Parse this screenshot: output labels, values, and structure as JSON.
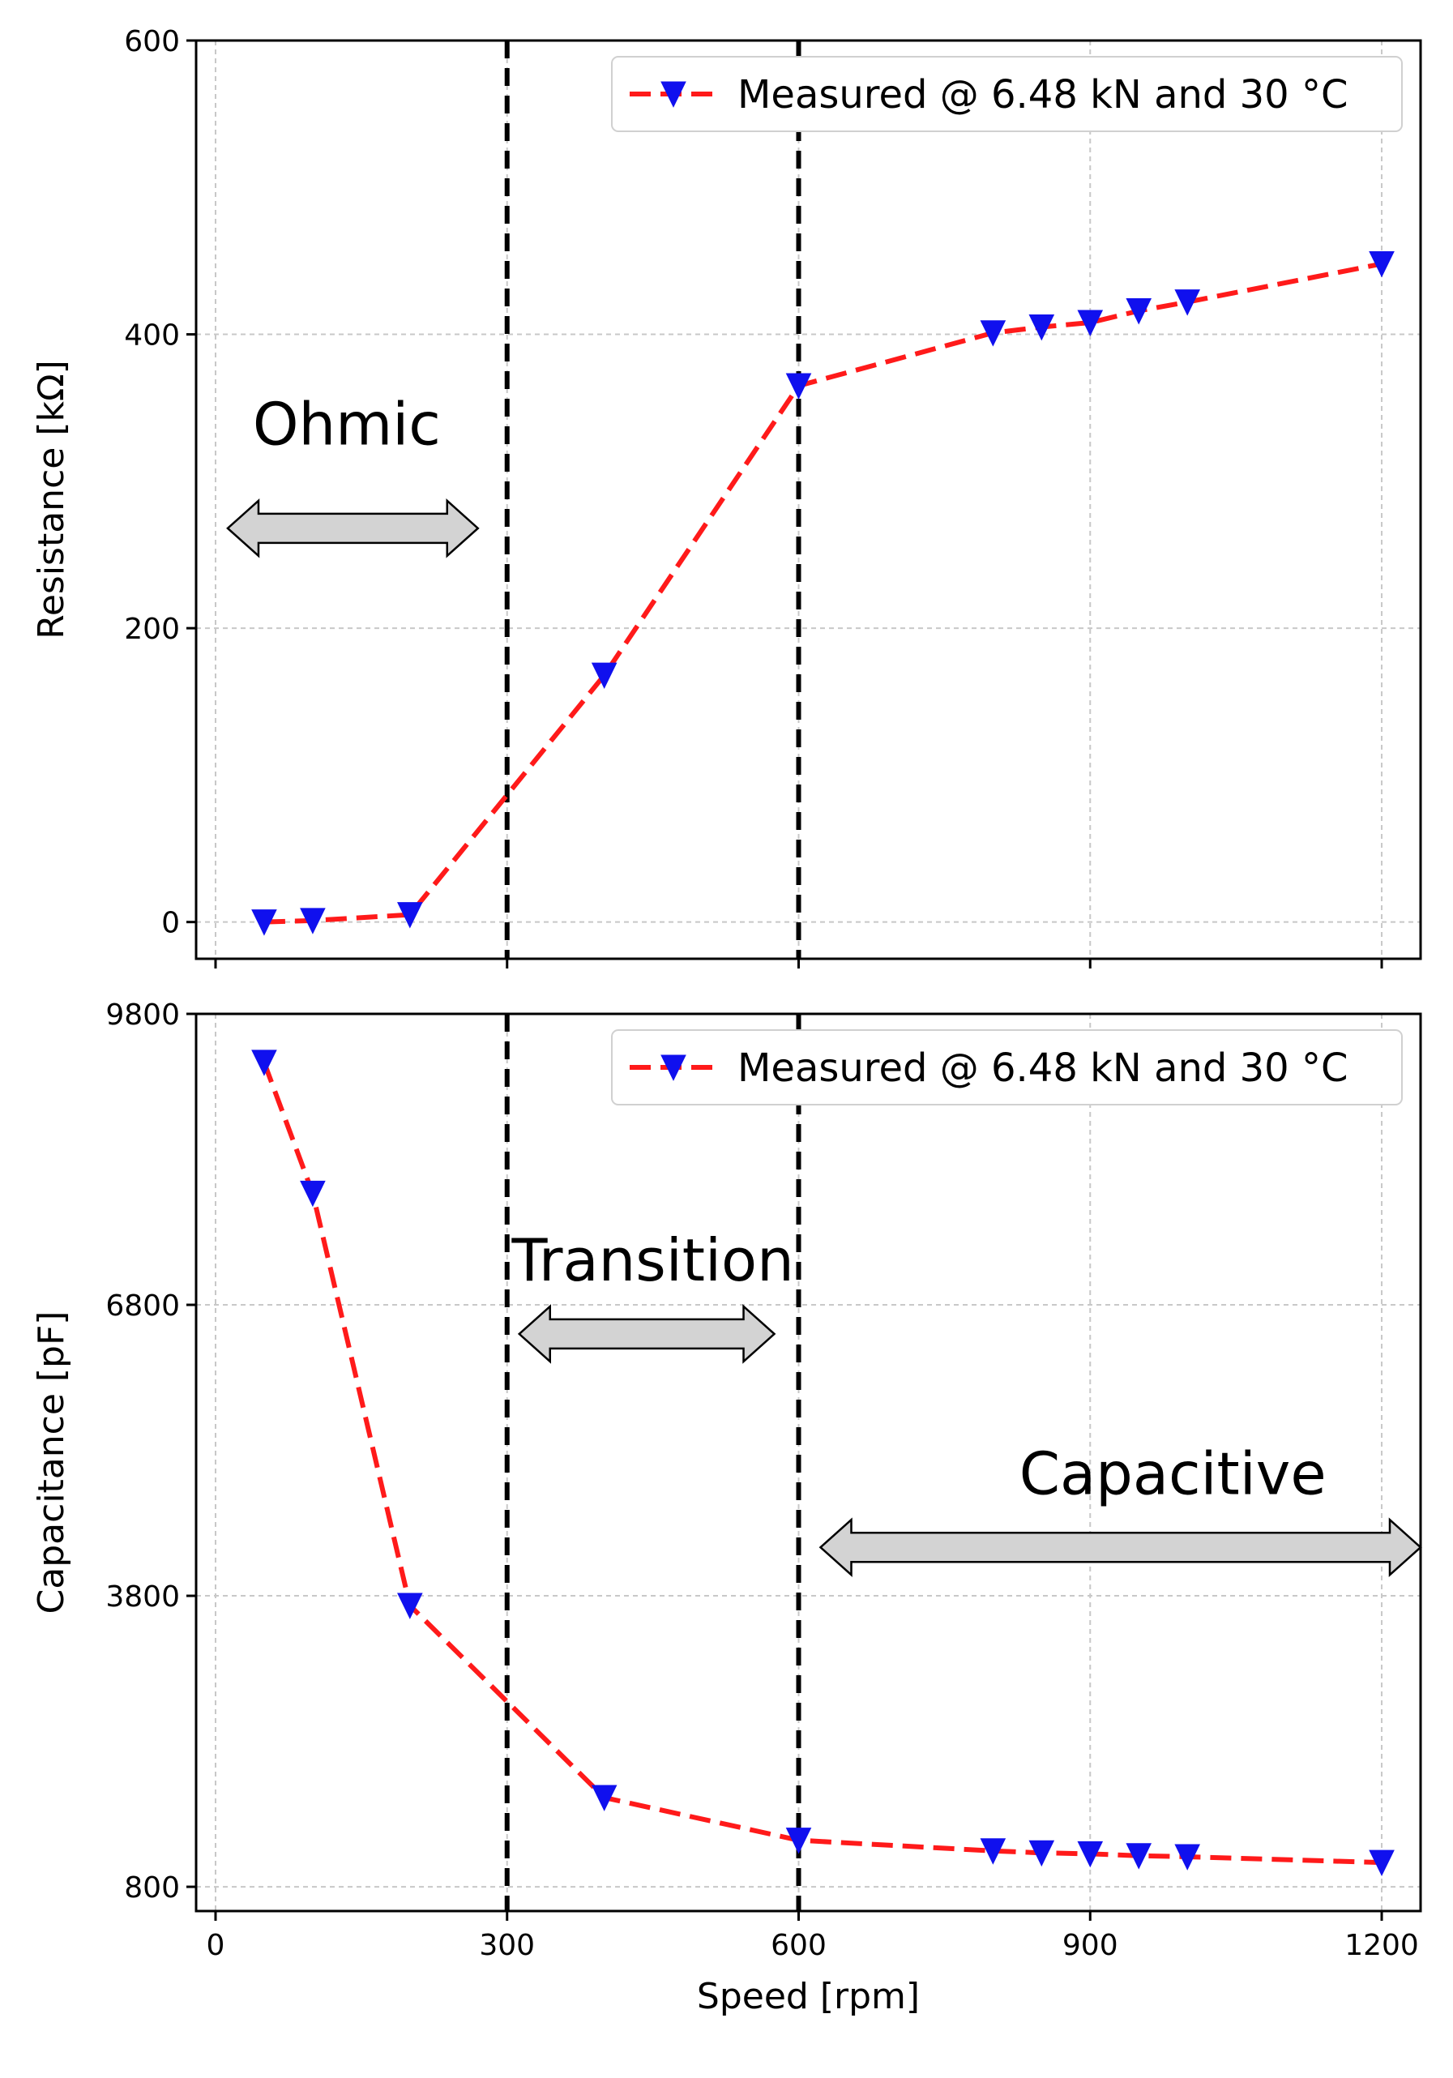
{
  "chart_data": [
    {
      "type": "line",
      "title": "",
      "xlabel": "",
      "ylabel": "Resistance [kΩ]",
      "xlim": [
        -20,
        1240
      ],
      "ylim": [
        -25,
        600
      ],
      "xticks": [
        0,
        300,
        600,
        900,
        1200
      ],
      "xtick_labels_visible": false,
      "yticks": [
        0,
        200,
        400,
        600
      ],
      "ytick_labels": [
        "0",
        "200",
        "400",
        "600"
      ],
      "grid": true,
      "legend_position": "top-right",
      "series": [
        {
          "name": "Measured @ 6.48 kN and 30 °C",
          "x": [
            50,
            100,
            200,
            400,
            600,
            800,
            850,
            900,
            950,
            1000,
            1200
          ],
          "y": [
            0,
            1,
            5,
            168,
            365,
            401,
            405,
            408,
            416,
            422,
            448
          ]
        }
      ],
      "vlines": [
        300,
        600
      ],
      "annotations": [
        {
          "text": "Ohmic",
          "arrow_from": 0,
          "arrow_to": 270,
          "arrow_y": 268,
          "text_x": 135,
          "text_y": 325
        }
      ]
    },
    {
      "type": "line",
      "title": "",
      "xlabel": "Speed [rpm]",
      "ylabel": "Capacitance [pF]",
      "xlim": [
        -20,
        1240
      ],
      "ylim": [
        550,
        9800
      ],
      "xticks": [
        0,
        300,
        600,
        900,
        1200
      ],
      "xtick_labels": [
        "0",
        "300",
        "600",
        "900",
        "1200"
      ],
      "yticks": [
        800,
        3800,
        6800,
        9800
      ],
      "ytick_labels": [
        "800",
        "3800",
        "6800",
        "9800"
      ],
      "grid": true,
      "legend_position": "top-right",
      "series": [
        {
          "name": "Measured @ 6.48 kN and 30 °C",
          "x": [
            50,
            100,
            200,
            400,
            600,
            800,
            850,
            900,
            950,
            1000,
            1200
          ],
          "y": [
            9300,
            7950,
            3700,
            1720,
            1280,
            1170,
            1150,
            1140,
            1120,
            1110,
            1050
          ]
        }
      ],
      "vlines": [
        300,
        600
      ],
      "annotations": [
        {
          "text": "Transition",
          "arrow_from": 300,
          "arrow_to": 575,
          "arrow_y": 6500,
          "text_x": 450,
          "text_y": 7050
        },
        {
          "text": "Capacitive",
          "arrow_from": 610,
          "arrow_to": 1240,
          "arrow_y": 4300,
          "text_x": 985,
          "text_y": 4850
        }
      ]
    }
  ]
}
